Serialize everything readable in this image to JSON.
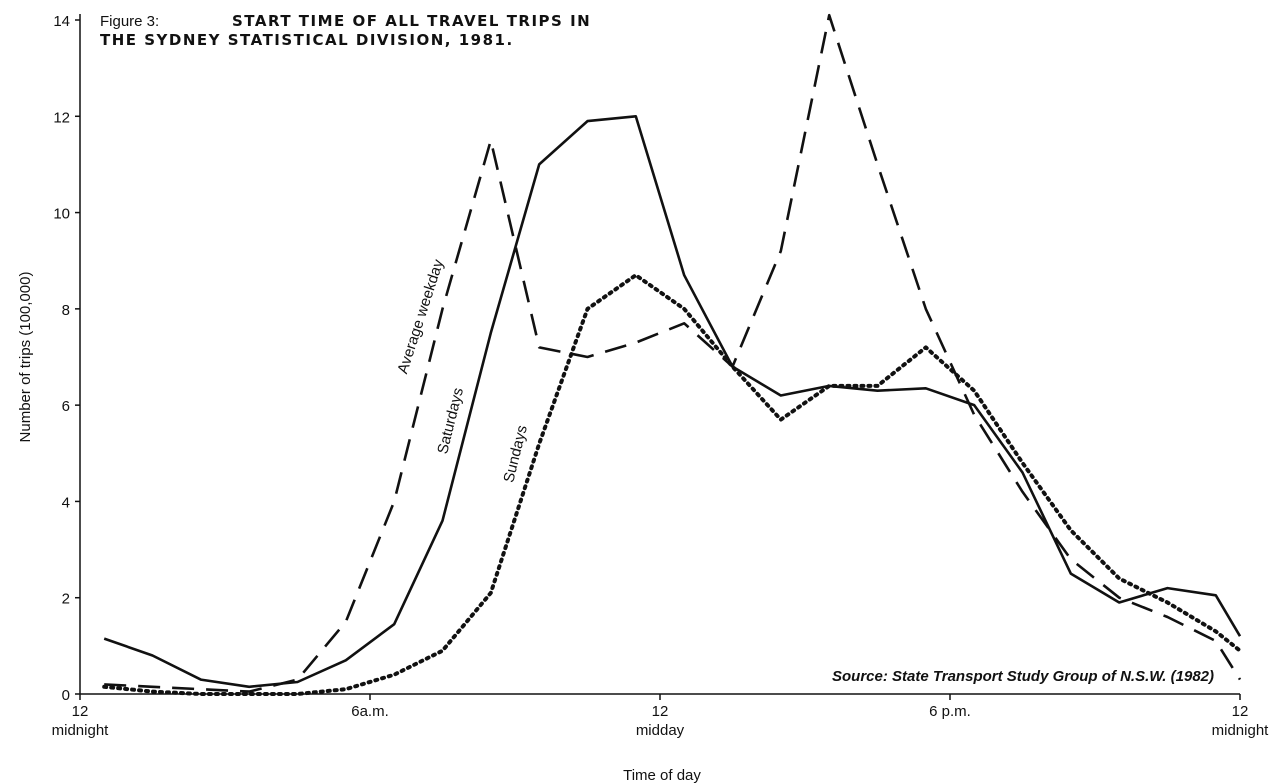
{
  "chart_data": {
    "type": "line",
    "figure_label": "Figure 3:",
    "title": "START TIME OF ALL TRAVEL TRIPS IN\nTHE SYDNEY STATISTICAL DIVISION, 1981.",
    "x_label": "Time of day",
    "y_label": "Number of trips (100,000)",
    "annotation": "Source: State Transport Study Group of N.S.W. (1982)",
    "x": [
      0.5,
      1.5,
      2.5,
      3.5,
      4.5,
      5.5,
      6.5,
      7.5,
      8.5,
      9.5,
      10.5,
      11.5,
      12.5,
      13.5,
      14.5,
      15.5,
      16.5,
      17.5,
      18.5,
      19.5,
      20.5,
      21.5,
      22.5,
      23.5,
      24
    ],
    "series": [
      {
        "name": "Average weekday",
        "color": "#111111",
        "dash": "22,12",
        "values": [
          0.2,
          0.15,
          0.1,
          0.05,
          0.3,
          1.5,
          4.0,
          8.0,
          11.5,
          7.2,
          7.0,
          7.3,
          7.7,
          6.8,
          9.2,
          14.1,
          11.0,
          8.0,
          5.8,
          4.2,
          2.8,
          2.0,
          1.6,
          1.1,
          0.3
        ]
      },
      {
        "name": "Saturdays",
        "color": "#111111",
        "dash": "none",
        "values": [
          1.15,
          0.8,
          0.3,
          0.15,
          0.25,
          0.7,
          1.45,
          3.6,
          7.5,
          11.0,
          11.9,
          12.0,
          8.7,
          6.8,
          6.2,
          6.4,
          6.3,
          6.35,
          6.0,
          4.6,
          2.5,
          1.9,
          2.2,
          2.05,
          1.2
        ]
      },
      {
        "name": "Sundays",
        "color": "#111111",
        "dash": "2,5",
        "values": [
          0.15,
          0.05,
          0.0,
          0.0,
          0.0,
          0.1,
          0.4,
          0.9,
          2.1,
          5.2,
          8.0,
          8.7,
          8.0,
          6.8,
          5.7,
          6.4,
          6.4,
          7.2,
          6.3,
          4.8,
          3.4,
          2.4,
          1.9,
          1.3,
          0.9
        ]
      }
    ],
    "xlim": [
      0,
      24
    ],
    "xticks": [
      {
        "value": 0,
        "label": "12\nmidnight"
      },
      {
        "value": 6,
        "label": "6a.m."
      },
      {
        "value": 12,
        "label": "12\nmidday"
      },
      {
        "value": 18,
        "label": "6 p.m."
      },
      {
        "value": 24,
        "label": "12\nmidnight"
      }
    ],
    "ylim": [
      0,
      14
    ],
    "yticks": [
      0,
      2,
      4,
      6,
      8,
      10,
      12,
      14
    ],
    "grid": false
  }
}
